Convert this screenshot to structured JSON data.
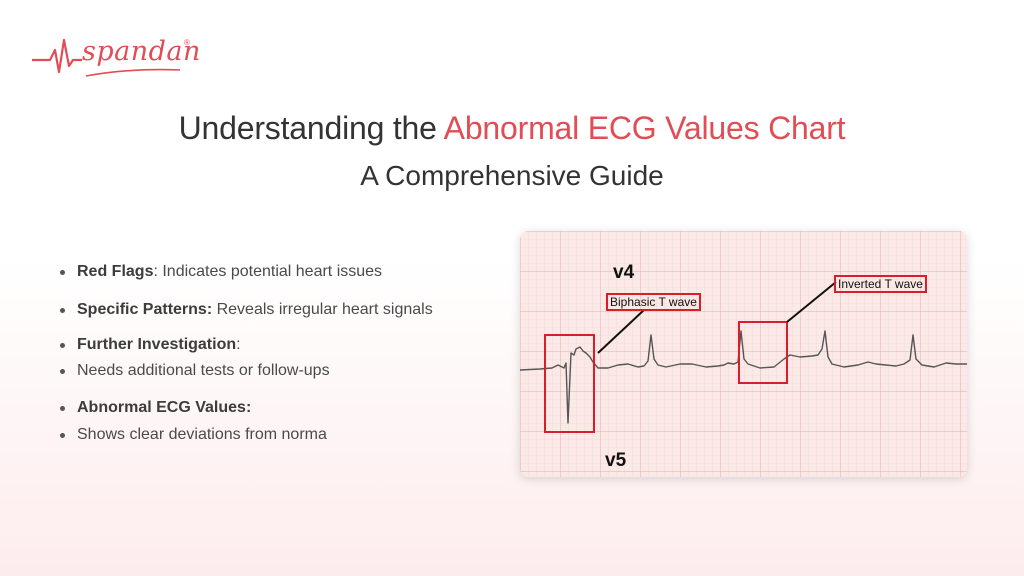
{
  "brand": {
    "name": "spandan",
    "registered": "®",
    "color": "#e24c55"
  },
  "title": {
    "prefix": "Understanding the ",
    "highlight": "Abnormal ECG Values Chart",
    "subtitle": "A Comprehensive Guide"
  },
  "bullets": [
    {
      "bold": "Red Flags",
      "text": ": Indicates potential heart issues"
    },
    {
      "bold": "Specific Patterns:",
      "text": " Reveals irregular heart signals"
    },
    {
      "bold": "Further Investigation",
      "text": ":"
    },
    {
      "bold": "",
      "text": "Needs additional tests or follow-ups"
    },
    {
      "bold": "Abnormal ECG Values:",
      "text": ""
    },
    {
      "bold": "",
      "text": "Shows clear deviations from norma"
    }
  ],
  "ecg": {
    "lead_top": "v4",
    "lead_bottom": "v5",
    "annotation_biphasic": "Biphasic T wave",
    "annotation_inverted": "Inverted T wave",
    "grid_color": "#efb8b6",
    "trace_color": "#555555",
    "box_color": "#d81e2a"
  }
}
